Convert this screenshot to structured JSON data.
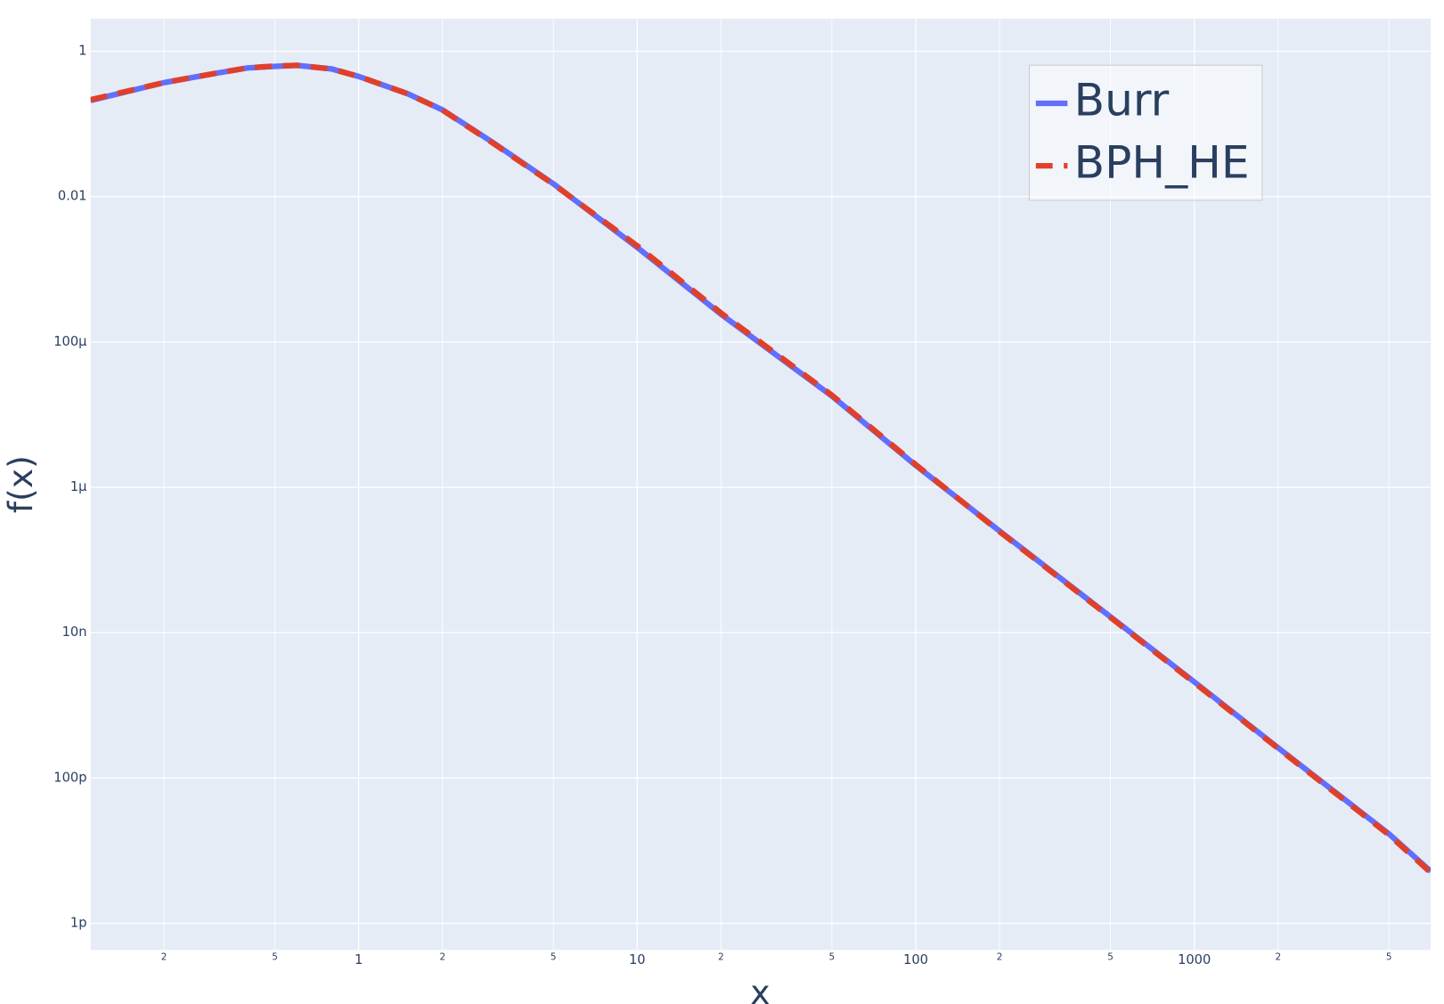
{
  "chart_data": {
    "type": "line",
    "x_label": "x",
    "y_label": "f(x)",
    "x": [
      0.109,
      0.2,
      0.3,
      0.4,
      0.5,
      0.6,
      0.8,
      1,
      1.5,
      2,
      3,
      5,
      10,
      20,
      50,
      100,
      200,
      500,
      1000,
      2000,
      5000,
      7060
    ],
    "series": [
      {
        "name": "Burr",
        "color": "#636efa",
        "dash": "solid",
        "values": [
          0.21,
          0.37,
          0.49,
          0.59,
          0.62,
          0.64,
          0.57,
          0.45,
          0.26,
          0.156,
          0.057,
          0.015,
          0.002,
          0.00024,
          1.8e-05,
          2e-06,
          2.5e-07,
          1.65e-08,
          2.1e-09,
          2.6e-10,
          1.7e-11,
          5.2e-12
        ]
      },
      {
        "name": "BPH_HE",
        "color": "#e0402a",
        "dash": "dash",
        "values": [
          0.215,
          0.37,
          0.49,
          0.59,
          0.625,
          0.64,
          0.57,
          0.45,
          0.26,
          0.155,
          0.056,
          0.0148,
          0.0021,
          0.00025,
          1.85e-05,
          2.05e-06,
          2.45e-07,
          1.62e-08,
          2.05e-09,
          2.55e-10,
          1.65e-11,
          5e-12
        ]
      }
    ],
    "x_log": true,
    "y_log": true,
    "grid": true,
    "legend_position": "top-right",
    "xlim": [
      0.109,
      7060
    ],
    "ylim": [
      2.81,
      4.3e-13
    ],
    "xticks": [
      {
        "value": 0.2,
        "label": "2"
      },
      {
        "value": 0.5,
        "label": "5"
      },
      1,
      {
        "value": 2,
        "label": "2"
      },
      {
        "value": 5,
        "label": "5"
      },
      10,
      {
        "value": 20,
        "label": "2"
      },
      {
        "value": 50,
        "label": "5"
      },
      100,
      {
        "value": 200,
        "label": "2"
      },
      {
        "value": 500,
        "label": "5"
      },
      1000,
      {
        "value": 2000,
        "label": "2"
      },
      {
        "value": 5000,
        "label": "5"
      }
    ],
    "yticks": [
      1,
      0.01,
      {
        "value": 0.0001,
        "label": "100μ"
      },
      {
        "value": 1e-06,
        "label": "1μ"
      },
      {
        "value": 1e-08,
        "label": "10n"
      },
      {
        "value": 1e-10,
        "label": "100p"
      },
      {
        "value": 1e-12,
        "label": "1p"
      }
    ]
  }
}
